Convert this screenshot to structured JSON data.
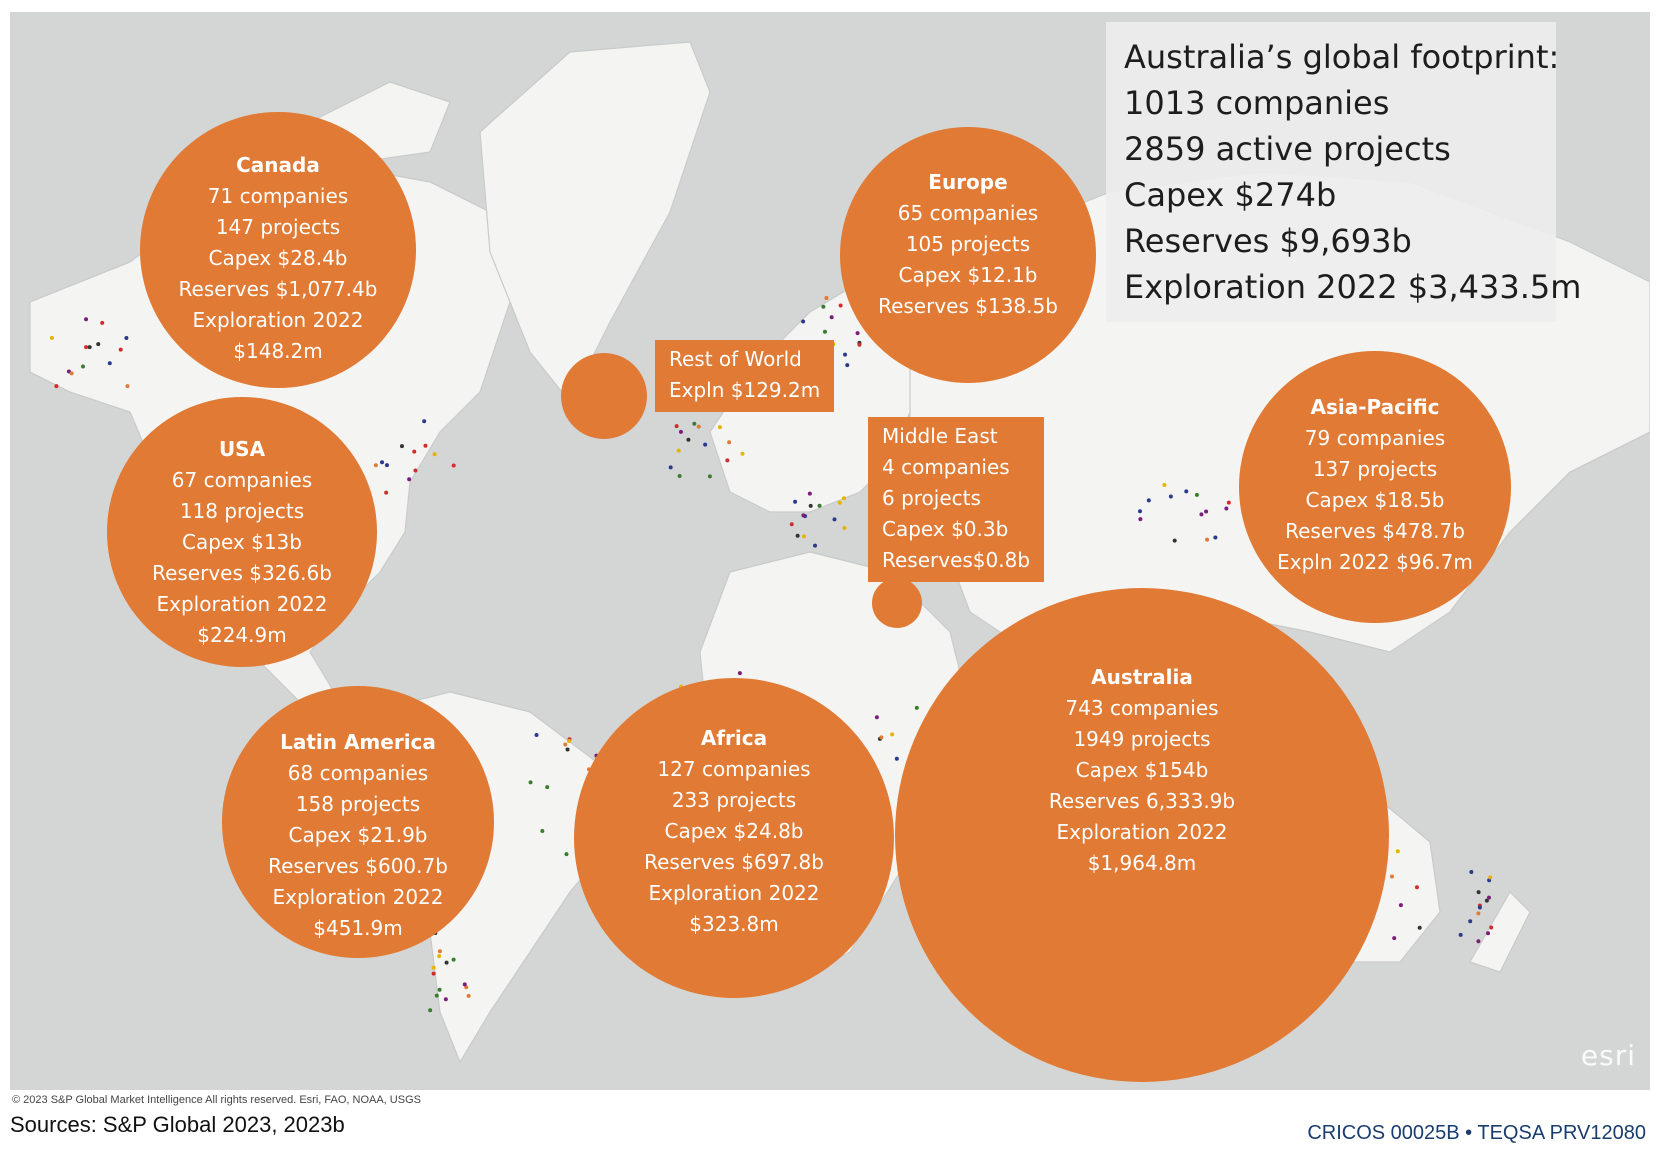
{
  "colors": {
    "ocean": "#d4d6d5",
    "land": "#f4f4f3",
    "bubble": "#e07a34",
    "text_dark": "#1d1d1d"
  },
  "summary": {
    "lines": [
      "Australia’s global footprint:",
      "1013 companies",
      "2859 active projects",
      "Capex $274b",
      "Reserves $9,693b",
      "Exploration 2022 $3,433.5m"
    ]
  },
  "regions": {
    "canada": {
      "title": "Canada",
      "lines": [
        "71 companies",
        "147 projects",
        "Capex $28.4b",
        "Reserves $1,077.4b",
        "Exploration 2022",
        "$148.2m"
      ]
    },
    "europe": {
      "title": "Europe",
      "lines": [
        "65 companies",
        "105 projects",
        "Capex $12.1b",
        "Reserves $138.5b"
      ]
    },
    "usa": {
      "title": "USA",
      "lines": [
        "67 companies",
        "118 projects",
        "Capex $13b",
        "Reserves $326.6b",
        "Exploration 2022",
        "$224.9m"
      ]
    },
    "asia_pacific": {
      "title": "Asia-Pacific",
      "lines": [
        "79 companies",
        "137 projects",
        "Capex $18.5b",
        "Reserves $478.7b",
        "Expln 2022 $96.7m"
      ]
    },
    "latin_america": {
      "title": "Latin America",
      "lines": [
        "68 companies",
        "158 projects",
        "Capex $21.9b",
        "Reserves $600.7b",
        "Exploration 2022",
        "$451.9m"
      ]
    },
    "africa": {
      "title": "Africa",
      "lines": [
        "127 companies",
        "233 projects",
        "Capex $24.8b",
        "Reserves $697.8b",
        "Exploration 2022",
        "$323.8m"
      ]
    },
    "australia": {
      "title": "Australia",
      "lines": [
        "743 companies",
        "1949 projects",
        "Capex $154b",
        "Reserves 6,333.9b",
        "Exploration 2022",
        "$1,964.8m"
      ]
    },
    "rest_of_world": {
      "lines": [
        "Rest of World",
        "Expln $129.2m"
      ]
    },
    "middle_east": {
      "lines": [
        "Middle East",
        "4 companies",
        "6 projects",
        "Capex $0.3b",
        "Reserves$0.8b"
      ]
    }
  },
  "map_logo": "esri",
  "copyright": "© 2023 S&P Global Market Intelligence All rights reserved. Esri, FAO, NOAA, USGS",
  "sources": "Sources: S&P Global 2023, 2023b",
  "cricos": "CRICOS 00025B • TEQSA PRV12080"
}
